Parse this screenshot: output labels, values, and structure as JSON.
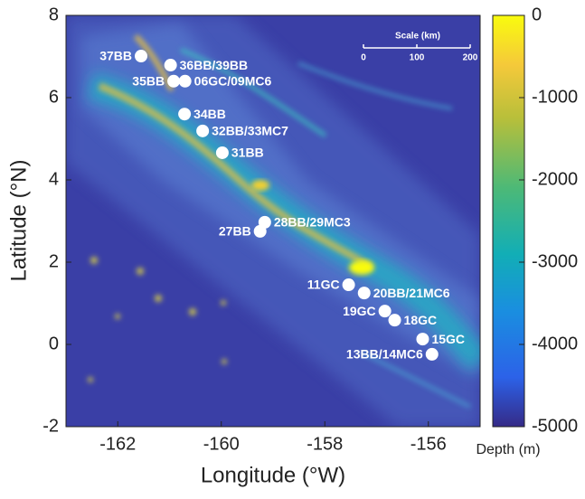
{
  "chart_data": {
    "type": "scatter",
    "xlabel": "Longitude (°W)",
    "ylabel": "Latitude (°N)",
    "xlim": [
      -163,
      -155
    ],
    "ylim": [
      -2,
      8
    ],
    "xticks": [
      -162,
      -160,
      -158,
      -156
    ],
    "yticks": [
      -2,
      0,
      2,
      4,
      6,
      8
    ],
    "color": "#ffffff",
    "labels": [
      "37BB",
      "36BB/39BB",
      "35BB",
      "06GC/09MC6",
      "34BB",
      "32BB/33MC7",
      "31BB",
      "28BB/29MC3",
      "27BB",
      "11GC",
      "20BB/21MC6",
      "19GC",
      "18GC",
      "15GC",
      "13BB/14MC6"
    ],
    "x": [
      -161.55,
      -160.98,
      -160.92,
      -160.7,
      -160.71,
      -160.36,
      -159.98,
      -159.16,
      -159.25,
      -157.54,
      -157.24,
      -156.84,
      -156.65,
      -156.11,
      -155.93
    ],
    "y": [
      7.01,
      6.79,
      6.4,
      6.4,
      5.6,
      5.19,
      4.66,
      2.97,
      2.75,
      1.45,
      1.25,
      0.81,
      0.59,
      0.13,
      -0.24
    ],
    "colorbar": {
      "label": "Depth (m)",
      "lim": [
        -5000,
        0
      ],
      "ticks": [
        0,
        -1000,
        -2000,
        -3000,
        -4000,
        -5000
      ]
    },
    "scale_bar": {
      "title": "Scale (km)",
      "lim": [
        0,
        200
      ],
      "ticks": [
        0,
        100,
        200
      ]
    }
  }
}
